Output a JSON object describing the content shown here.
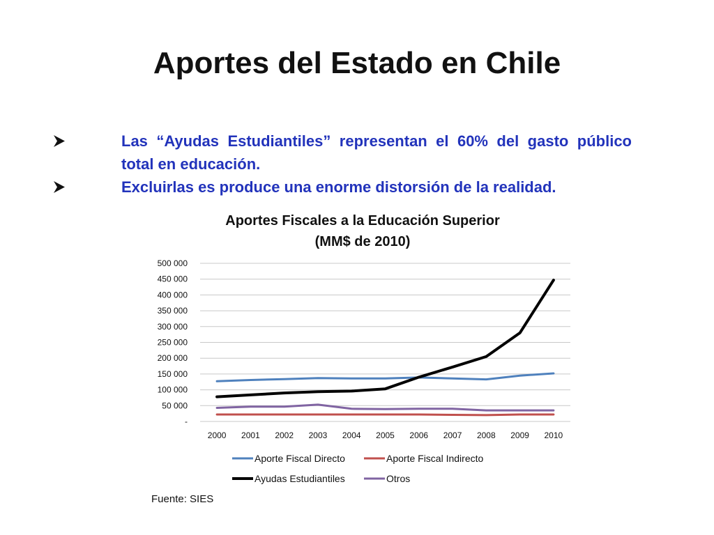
{
  "slide": {
    "title": "Aportes del Estado en Chile",
    "bullets": [
      "Las “Ayudas Estudiantiles” representan el 60% del gasto público total en educación.",
      "Excluirlas es produce una enorme distorsión de la realidad."
    ],
    "bullet_marker_icon": "arrowhead-bullet-icon",
    "source": "Fuente: SIES"
  },
  "colors": {
    "title": "#111111",
    "bullet_text": "#2233bb",
    "gridline": "#c8c8c8"
  },
  "chart_data": {
    "type": "line",
    "title": "Aportes Fiscales a la Educación Superior",
    "subtitle": "(MM$ de 2010)",
    "x": [
      "2000",
      "2001",
      "2002",
      "2003",
      "2004",
      "2005",
      "2006",
      "2007",
      "2008",
      "2009",
      "2010"
    ],
    "ylim": [
      0,
      500000
    ],
    "yticks": [
      0,
      50000,
      100000,
      150000,
      200000,
      250000,
      300000,
      350000,
      400000,
      450000,
      500000
    ],
    "ytick_labels": [
      "-",
      "50 000",
      "100 000",
      "150 000",
      "200 000",
      "250 000",
      "300 000",
      "350 000",
      "400 000",
      "450 000",
      "500 000"
    ],
    "grid": true,
    "legend_position": "bottom",
    "series": [
      {
        "name": "Aporte Fiscal Directo",
        "color": "#4f81bd",
        "values": [
          127000,
          131000,
          134000,
          137000,
          136000,
          136000,
          139000,
          136000,
          133000,
          145000,
          152000
        ]
      },
      {
        "name": "Aporte Fiscal Indirecto",
        "color": "#c0504d",
        "values": [
          22000,
          22000,
          22000,
          22000,
          22000,
          22000,
          22000,
          21000,
          20000,
          22000,
          22000
        ]
      },
      {
        "name": "Ayudas Estudiantiles",
        "color": "#000000",
        "values": [
          78000,
          84000,
          90000,
          94000,
          96000,
          103000,
          140000,
          172000,
          205000,
          280000,
          447000
        ]
      },
      {
        "name": "Otros",
        "color": "#8064a2",
        "values": [
          43000,
          47000,
          47000,
          53000,
          40000,
          39000,
          40000,
          40000,
          35000,
          35000,
          35000
        ]
      }
    ]
  }
}
